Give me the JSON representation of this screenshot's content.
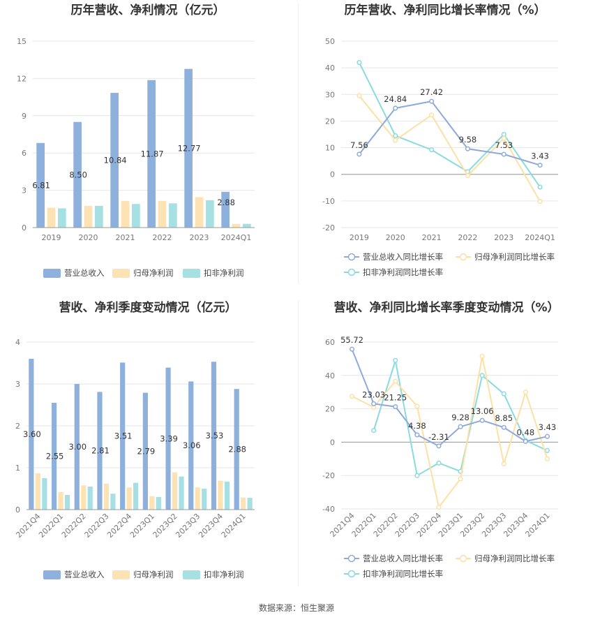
{
  "colors": {
    "revenue": "#8eb0dd",
    "net_profit": "#fde3b3",
    "deducted_profit": "#a6e0e3",
    "revenue_line": "#8eaadb",
    "net_profit_line": "#fde0a4",
    "deducted_line": "#88dbe0",
    "grid": "#e6e6e6",
    "axis": "#999999"
  },
  "source_label": "数据来源：恒生聚源",
  "chart_data": [
    {
      "id": "annual_values",
      "type": "bar",
      "title": "历年营收、净利情况（亿元）",
      "categories": [
        "2019",
        "2020",
        "2021",
        "2022",
        "2023",
        "2024Q1"
      ],
      "ylim": [
        0,
        15
      ],
      "yticks": [
        0,
        3,
        6,
        9,
        12,
        15
      ],
      "grid": true,
      "legend": "bottom",
      "series": [
        {
          "name": "营业总收入",
          "values": [
            6.81,
            8.5,
            10.84,
            11.87,
            12.77,
            2.88
          ],
          "labels": [
            "6.81",
            "8.50",
            "10.84",
            "11.87",
            "12.77",
            "2.88"
          ]
        },
        {
          "name": "归母净利润",
          "values": [
            1.6,
            1.75,
            2.15,
            2.15,
            2.45,
            0.3
          ]
        },
        {
          "name": "扣非净利润",
          "values": [
            1.55,
            1.75,
            1.9,
            1.95,
            2.2,
            0.3
          ]
        }
      ]
    },
    {
      "id": "annual_growth",
      "type": "line",
      "title": "历年营收、净利同比增长率情况（%）",
      "categories": [
        "2019",
        "2020",
        "2021",
        "2022",
        "2023",
        "2024Q1"
      ],
      "ylim": [
        -20,
        50
      ],
      "yticks": [
        -20,
        -10,
        0,
        10,
        20,
        30,
        40,
        50
      ],
      "grid": true,
      "legend": "bottom",
      "series": [
        {
          "name": "营业总收入同比增长率",
          "values": [
            7.56,
            24.84,
            27.42,
            9.58,
            7.53,
            3.43
          ],
          "labels": [
            "7.56",
            "24.84",
            "27.42",
            "9.58",
            "7.53",
            "3.43"
          ]
        },
        {
          "name": "归母净利润同比增长率",
          "values": [
            29.5,
            12.8,
            22.3,
            -0.5,
            13.5,
            -10.2
          ]
        },
        {
          "name": "扣非净利润同比增长率",
          "values": [
            42.0,
            14.5,
            9.2,
            1.0,
            15.0,
            -4.8
          ]
        }
      ]
    },
    {
      "id": "quarterly_values",
      "type": "bar",
      "title": "营收、净利季度变动情况（亿元）",
      "categories": [
        "2021Q4",
        "2022Q1",
        "2022Q2",
        "2022Q3",
        "2022Q4",
        "2023Q1",
        "2023Q2",
        "2023Q3",
        "2023Q4",
        "2024Q1"
      ],
      "ylim": [
        0,
        4
      ],
      "yticks": [
        0,
        1,
        2,
        3,
        4
      ],
      "grid": true,
      "legend": "bottom",
      "series": [
        {
          "name": "营业总收入",
          "values": [
            3.6,
            2.55,
            3.0,
            2.81,
            3.51,
            2.79,
            3.39,
            3.06,
            3.53,
            2.88
          ],
          "labels": [
            "3.60",
            "2.55",
            "3.00",
            "2.81",
            "3.51",
            "2.79",
            "3.39",
            "3.06",
            "3.53",
            "2.88"
          ]
        },
        {
          "name": "归母净利润",
          "values": [
            0.87,
            0.42,
            0.58,
            0.62,
            0.53,
            0.32,
            0.89,
            0.53,
            0.69,
            0.29
          ]
        },
        {
          "name": "扣非净利润",
          "values": [
            0.75,
            0.35,
            0.55,
            0.38,
            0.64,
            0.3,
            0.79,
            0.5,
            0.67,
            0.28
          ]
        }
      ]
    },
    {
      "id": "quarterly_growth",
      "type": "line",
      "title": "营收、净利同比增长率季度变动情况（%）",
      "categories": [
        "2021Q4",
        "2022Q1",
        "2022Q2",
        "2022Q3",
        "2022Q4",
        "2023Q1",
        "2023Q2",
        "2023Q3",
        "2023Q4",
        "2024Q1"
      ],
      "ylim": [
        -40,
        60
      ],
      "yticks": [
        -40,
        -20,
        0,
        20,
        40,
        60
      ],
      "grid": true,
      "legend": "bottom",
      "series": [
        {
          "name": "营业总收入同比增长率",
          "values": [
            55.72,
            23.03,
            21.25,
            4.38,
            -2.31,
            9.28,
            13.06,
            8.85,
            0.48,
            3.43
          ],
          "labels": [
            "55.72",
            "23.03",
            "21.25",
            "4.38",
            "-2.31",
            "9.28",
            "13.06",
            "8.85",
            "0.48",
            "3.43"
          ]
        },
        {
          "name": "归母净利润同比增长率",
          "values": [
            27.5,
            21.0,
            36.5,
            21.5,
            -39.0,
            -22.0,
            51.5,
            -13.0,
            30.0,
            -10.0
          ]
        },
        {
          "name": "扣非净利润同比增长率",
          "values": [
            null,
            7.0,
            49.0,
            -20.0,
            -12.5,
            -17.5,
            40.0,
            29.0,
            1.0,
            -5.0
          ]
        }
      ]
    }
  ]
}
